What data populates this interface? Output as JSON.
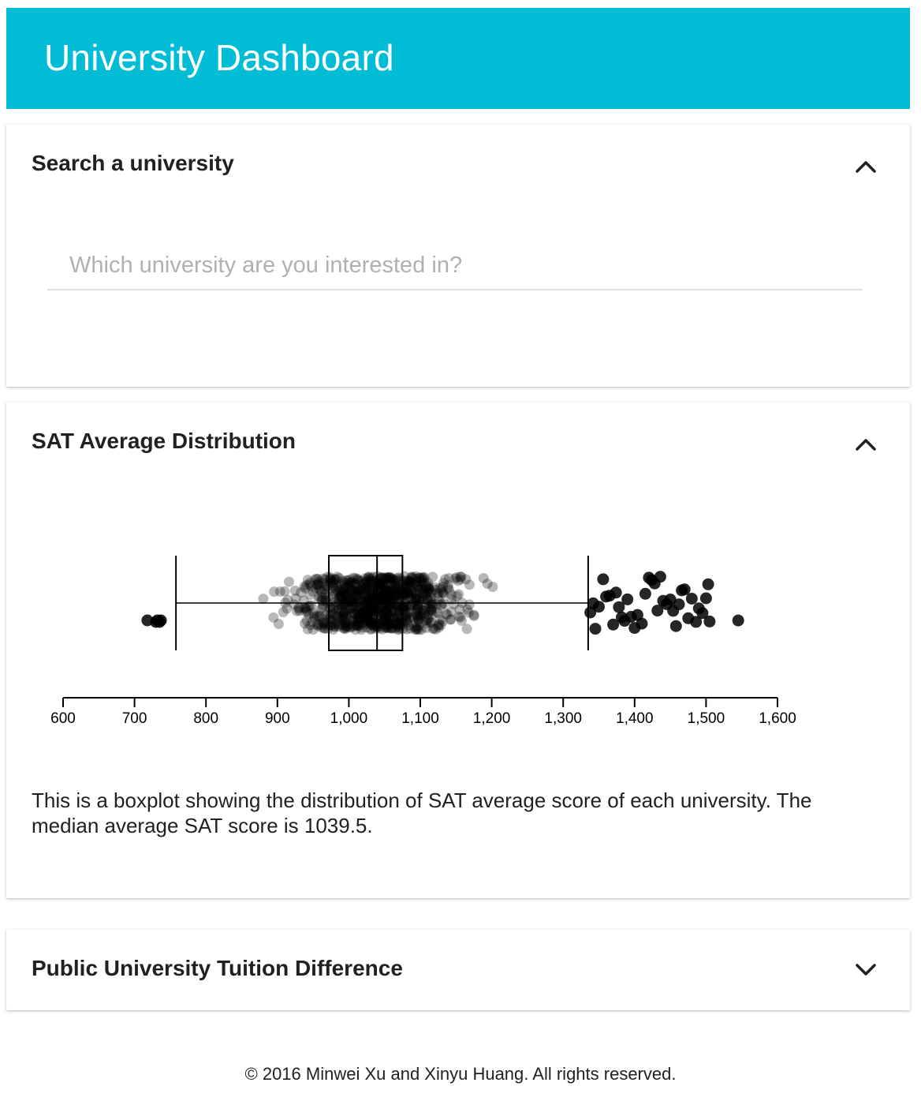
{
  "app": {
    "title": "University Dashboard",
    "accent_color": "#00bcd4"
  },
  "search_card": {
    "title": "Search a university",
    "input_placeholder": "Which university are you interested in?",
    "input_value": "",
    "toggle_icon": "chevron-up-icon"
  },
  "sat_card": {
    "title": "SAT Average Distribution",
    "toggle_icon": "chevron-up-icon",
    "description": "This is a boxplot showing the distribution of SAT average score of each university. The median average SAT score is 1039.5."
  },
  "tuition_card": {
    "title": "Public University Tuition Difference",
    "toggle_icon": "chevron-down-icon"
  },
  "footer": {
    "text": "© 2016 Minwei Xu and Xinyu Huang. All rights reserved."
  },
  "chart_data": {
    "type": "boxplot",
    "xlim": [
      600,
      1600
    ],
    "ticks": [
      "600",
      "700",
      "800",
      "900",
      "1,000",
      "1,100",
      "1,200",
      "1,300",
      "1,400",
      "1,500",
      "1,600"
    ],
    "tick_values": [
      600,
      700,
      800,
      900,
      1000,
      1100,
      1200,
      1300,
      1400,
      1500,
      1600
    ],
    "box": {
      "whisker_low": 758,
      "q1": 972,
      "median": 1039.5,
      "q3": 1075,
      "whisker_high": 1335
    },
    "points_approx": "hundreds of jittered points between ~758 and ~1335 (semi-transparent)",
    "outliers": [
      718,
      730,
      732,
      735,
      737,
      1338,
      1342,
      1345,
      1350,
      1356,
      1360,
      1365,
      1370,
      1374,
      1378,
      1382,
      1386,
      1390,
      1395,
      1400,
      1404,
      1410,
      1415,
      1420,
      1424,
      1428,
      1432,
      1436,
      1440,
      1445,
      1450,
      1454,
      1458,
      1462,
      1466,
      1470,
      1475,
      1480,
      1486,
      1490,
      1495,
      1500,
      1503,
      1505,
      1545
    ],
    "point_color": "#000000"
  }
}
